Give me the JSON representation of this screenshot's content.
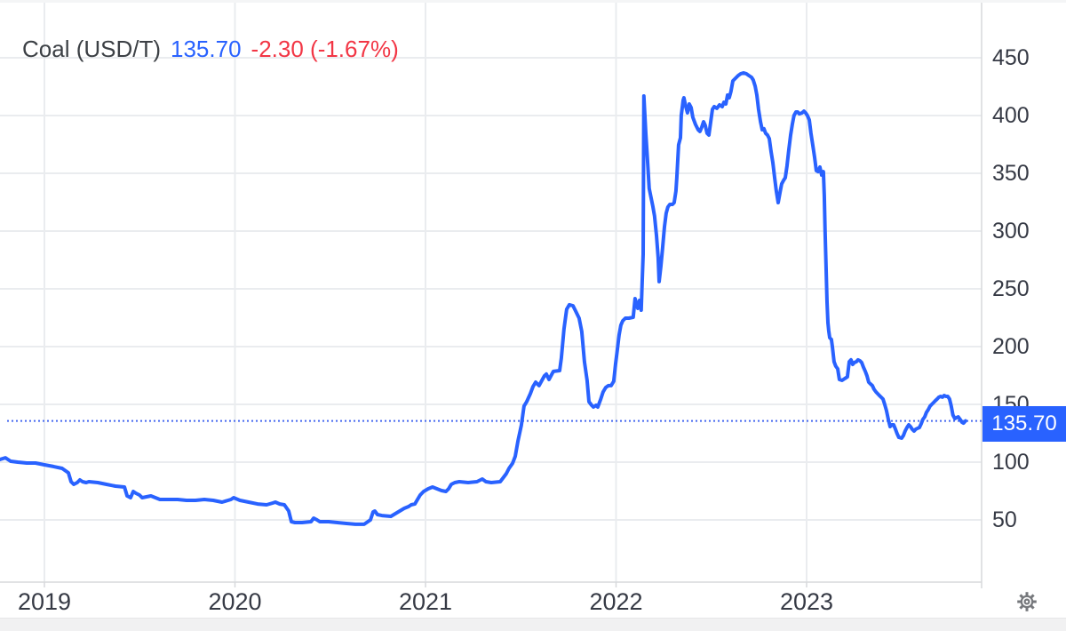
{
  "legend": {
    "title": "Coal (USD/T)",
    "last": "135.70",
    "change_text": "-2.30 (-1.67%)"
  },
  "price_label": {
    "text": "135.70"
  },
  "colors": {
    "line": "#2962ff",
    "last_price_text": "#2962ff",
    "change_negative": "#f23645",
    "price_tag_bg": "#2962ff",
    "grid": "#eaecef",
    "axis_line": "#d7d9dc",
    "axis_text": "#363a45",
    "dotted_price_line": "#4568ef",
    "gear": "#76787c"
  },
  "icons": {
    "settings": "gear-icon"
  },
  "chart_data": {
    "type": "line",
    "title": "Coal (USD/T)",
    "unit": "USD/T",
    "last_price": 135.7,
    "change": -2.3,
    "change_pct": -1.67,
    "price_line": 135.7,
    "grid": true,
    "legend_position": "top-left",
    "y_axis_side": "right",
    "ylim": [
      -3.8,
      500
    ],
    "xlim": [
      2018.767,
      2023.918
    ],
    "y_ticks": [
      450,
      400,
      350,
      300,
      250,
      200,
      150,
      100,
      50
    ],
    "x_ticks": [
      {
        "year": 2019,
        "label": "2019"
      },
      {
        "year": 2020,
        "label": "2020"
      },
      {
        "year": 2021,
        "label": "2021"
      },
      {
        "year": 2022,
        "label": "2022"
      },
      {
        "year": 2023,
        "label": "2023"
      }
    ],
    "points": [
      [
        2018.767,
        102.3
      ],
      [
        2018.795,
        103.8
      ],
      [
        2018.823,
        100.8
      ],
      [
        2018.86,
        100
      ],
      [
        2018.907,
        99.2
      ],
      [
        2018.953,
        99.2
      ],
      [
        2019.0,
        97.7
      ],
      [
        2019.047,
        96.2
      ],
      [
        2019.093,
        94.6
      ],
      [
        2019.126,
        90.8
      ],
      [
        2019.14,
        83.1
      ],
      [
        2019.154,
        80.8
      ],
      [
        2019.172,
        82.3
      ],
      [
        2019.186,
        84.6
      ],
      [
        2019.2,
        83.1
      ],
      [
        2019.219,
        82.3
      ],
      [
        2019.233,
        83.1
      ],
      [
        2019.28,
        82.3
      ],
      [
        2019.326,
        80.8
      ],
      [
        2019.373,
        79.2
      ],
      [
        2019.42,
        78.5
      ],
      [
        2019.434,
        70.8
      ],
      [
        2019.452,
        69.2
      ],
      [
        2019.466,
        74.6
      ],
      [
        2019.48,
        73.1
      ],
      [
        2019.499,
        71.5
      ],
      [
        2019.513,
        69.2
      ],
      [
        2019.559,
        70.8
      ],
      [
        2019.606,
        67.7
      ],
      [
        2019.653,
        67.7
      ],
      [
        2019.699,
        67.7
      ],
      [
        2019.746,
        66.9
      ],
      [
        2019.793,
        66.9
      ],
      [
        2019.839,
        67.7
      ],
      [
        2019.886,
        66.9
      ],
      [
        2019.932,
        65.4
      ],
      [
        2019.979,
        67.7
      ],
      [
        2019.993,
        69.2
      ],
      [
        2020.026,
        66.9
      ],
      [
        2020.072,
        65.4
      ],
      [
        2020.119,
        63.8
      ],
      [
        2020.166,
        63.1
      ],
      [
        2020.198,
        64.6
      ],
      [
        2020.212,
        65.4
      ],
      [
        2020.235,
        63.8
      ],
      [
        2020.259,
        63.1
      ],
      [
        2020.282,
        57.7
      ],
      [
        2020.296,
        48.5
      ],
      [
        2020.315,
        47.7
      ],
      [
        2020.352,
        47.7
      ],
      [
        2020.399,
        48.5
      ],
      [
        2020.413,
        51.5
      ],
      [
        2020.431,
        50
      ],
      [
        2020.445,
        48.5
      ],
      [
        2020.492,
        48.5
      ],
      [
        2020.538,
        47.7
      ],
      [
        2020.585,
        46.9
      ],
      [
        2020.632,
        46.2
      ],
      [
        2020.678,
        46.2
      ],
      [
        2020.711,
        50
      ],
      [
        2020.725,
        56.9
      ],
      [
        2020.734,
        57.7
      ],
      [
        2020.748,
        54.6
      ],
      [
        2020.771,
        53.8
      ],
      [
        2020.818,
        53.1
      ],
      [
        2020.865,
        57.7
      ],
      [
        2020.888,
        60
      ],
      [
        2020.911,
        61.5
      ],
      [
        2020.925,
        63.1
      ],
      [
        2020.944,
        63.8
      ],
      [
        2020.958,
        67.7
      ],
      [
        2020.972,
        71.5
      ],
      [
        2020.99,
        74.6
      ],
      [
        2021.014,
        76.9
      ],
      [
        2021.037,
        78.5
      ],
      [
        2021.06,
        76.9
      ],
      [
        2021.084,
        75.4
      ],
      [
        2021.107,
        74.6
      ],
      [
        2021.121,
        76.9
      ],
      [
        2021.135,
        80.8
      ],
      [
        2021.154,
        82.3
      ],
      [
        2021.177,
        83.1
      ],
      [
        2021.224,
        82.3
      ],
      [
        2021.27,
        83.1
      ],
      [
        2021.298,
        85.4
      ],
      [
        2021.317,
        83.1
      ],
      [
        2021.345,
        82.3
      ],
      [
        2021.392,
        83.1
      ],
      [
        2021.41,
        86.9
      ],
      [
        2021.424,
        90
      ],
      [
        2021.438,
        94.6
      ],
      [
        2021.457,
        99
      ],
      [
        2021.471,
        105
      ],
      [
        2021.485,
        118
      ],
      [
        2021.503,
        132
      ],
      [
        2021.517,
        148.5
      ],
      [
        2021.531,
        152.3
      ],
      [
        2021.55,
        159.2
      ],
      [
        2021.564,
        165.4
      ],
      [
        2021.578,
        169.2
      ],
      [
        2021.596,
        166.2
      ],
      [
        2021.624,
        174.6
      ],
      [
        2021.634,
        176.2
      ],
      [
        2021.648,
        171.5
      ],
      [
        2021.671,
        178.5
      ],
      [
        2021.704,
        179.2
      ],
      [
        2021.713,
        190
      ],
      [
        2021.727,
        215.4
      ],
      [
        2021.741,
        232.3
      ],
      [
        2021.755,
        236.2
      ],
      [
        2021.774,
        235.4
      ],
      [
        2021.788,
        230.8
      ],
      [
        2021.806,
        224.6
      ],
      [
        2021.82,
        213.1
      ],
      [
        2021.834,
        186.9
      ],
      [
        2021.848,
        170.8
      ],
      [
        2021.858,
        152.3
      ],
      [
        2021.872,
        149.2
      ],
      [
        2021.881,
        147.7
      ],
      [
        2021.895,
        149.2
      ],
      [
        2021.904,
        147.7
      ],
      [
        2021.918,
        153.8
      ],
      [
        2021.932,
        160.8
      ],
      [
        2021.946,
        164.6
      ],
      [
        2021.96,
        166.2
      ],
      [
        2021.974,
        166.2
      ],
      [
        2021.988,
        170
      ],
      [
        2021.997,
        184.6
      ],
      [
        2022.007,
        197.7
      ],
      [
        2022.016,
        210
      ],
      [
        2022.025,
        218.5
      ],
      [
        2022.035,
        222.3
      ],
      [
        2022.049,
        224.6
      ],
      [
        2022.067,
        224.6
      ],
      [
        2022.09,
        225.4
      ],
      [
        2022.1,
        241.5
      ],
      [
        2022.114,
        233.1
      ],
      [
        2022.123,
        240
      ],
      [
        2022.132,
        231.5
      ],
      [
        2022.142,
        280
      ],
      [
        2022.146,
        416.9
      ],
      [
        2022.156,
        384.6
      ],
      [
        2022.165,
        361.5
      ],
      [
        2022.174,
        336.9
      ],
      [
        2022.184,
        328.5
      ],
      [
        2022.193,
        321.5
      ],
      [
        2022.202,
        313.1
      ],
      [
        2022.212,
        296.2
      ],
      [
        2022.221,
        276.9
      ],
      [
        2022.226,
        256.2
      ],
      [
        2022.235,
        269.2
      ],
      [
        2022.244,
        284.6
      ],
      [
        2022.254,
        303.8
      ],
      [
        2022.263,
        315.4
      ],
      [
        2022.272,
        320.8
      ],
      [
        2022.282,
        323.1
      ],
      [
        2022.296,
        323.1
      ],
      [
        2022.305,
        324.6
      ],
      [
        2022.314,
        334.6
      ],
      [
        2022.319,
        346.2
      ],
      [
        2022.328,
        374.6
      ],
      [
        2022.338,
        380.8
      ],
      [
        2022.342,
        400
      ],
      [
        2022.352,
        413.1
      ],
      [
        2022.356,
        415.4
      ],
      [
        2022.366,
        407.7
      ],
      [
        2022.375,
        402.3
      ],
      [
        2022.384,
        410
      ],
      [
        2022.394,
        406.9
      ],
      [
        2022.403,
        398.5
      ],
      [
        2022.417,
        392.3
      ],
      [
        2022.431,
        387.7
      ],
      [
        2022.44,
        386.2
      ],
      [
        2022.45,
        390
      ],
      [
        2022.459,
        394.6
      ],
      [
        2022.468,
        391.5
      ],
      [
        2022.478,
        384.6
      ],
      [
        2022.487,
        383.1
      ],
      [
        2022.496,
        393.8
      ],
      [
        2022.506,
        405.4
      ],
      [
        2022.515,
        407.7
      ],
      [
        2022.529,
        406.2
      ],
      [
        2022.543,
        409.2
      ],
      [
        2022.557,
        407.7
      ],
      [
        2022.566,
        411.5
      ],
      [
        2022.576,
        410
      ],
      [
        2022.585,
        417.7
      ],
      [
        2022.594,
        415.4
      ],
      [
        2022.603,
        420.8
      ],
      [
        2022.613,
        430
      ],
      [
        2022.627,
        432.3
      ],
      [
        2022.641,
        434.6
      ],
      [
        2022.655,
        436.2
      ],
      [
        2022.669,
        436.9
      ],
      [
        2022.683,
        436.2
      ],
      [
        2022.697,
        434.6
      ],
      [
        2022.711,
        433.1
      ],
      [
        2022.72,
        430.8
      ],
      [
        2022.73,
        425.4
      ],
      [
        2022.739,
        417.7
      ],
      [
        2022.748,
        405.4
      ],
      [
        2022.758,
        394.6
      ],
      [
        2022.767,
        387.7
      ],
      [
        2022.776,
        388.5
      ],
      [
        2022.785,
        384.6
      ],
      [
        2022.795,
        383.1
      ],
      [
        2022.804,
        380
      ],
      [
        2022.813,
        369.2
      ],
      [
        2022.823,
        359.2
      ],
      [
        2022.832,
        346.2
      ],
      [
        2022.841,
        334.6
      ],
      [
        2022.851,
        324.6
      ],
      [
        2022.86,
        333.1
      ],
      [
        2022.869,
        340.8
      ],
      [
        2022.879,
        343.8
      ],
      [
        2022.888,
        346.2
      ],
      [
        2022.897,
        356.2
      ],
      [
        2022.906,
        369.2
      ],
      [
        2022.916,
        383.1
      ],
      [
        2022.925,
        392.3
      ],
      [
        2022.934,
        400
      ],
      [
        2022.944,
        403.1
      ],
      [
        2022.953,
        403.1
      ],
      [
        2022.962,
        401.5
      ],
      [
        2022.976,
        402.3
      ],
      [
        2022.986,
        403.8
      ],
      [
        2022.995,
        402.3
      ],
      [
        2023.004,
        400
      ],
      [
        2023.014,
        396.2
      ],
      [
        2023.023,
        384.6
      ],
      [
        2023.032,
        374.6
      ],
      [
        2023.042,
        363.8
      ],
      [
        2023.051,
        352.3
      ],
      [
        2023.06,
        351.5
      ],
      [
        2023.07,
        355.4
      ],
      [
        2023.079,
        348.5
      ],
      [
        2023.088,
        351.5
      ],
      [
        2023.093,
        330.8
      ],
      [
        2023.097,
        300
      ],
      [
        2023.102,
        269.2
      ],
      [
        2023.107,
        238.5
      ],
      [
        2023.112,
        220.8
      ],
      [
        2023.116,
        213.8
      ],
      [
        2023.121,
        207.7
      ],
      [
        2023.13,
        206.2
      ],
      [
        2023.135,
        200
      ],
      [
        2023.144,
        186.9
      ],
      [
        2023.153,
        183.1
      ],
      [
        2023.163,
        180.8
      ],
      [
        2023.172,
        171.5
      ],
      [
        2023.186,
        170.8
      ],
      [
        2023.2,
        172.3
      ],
      [
        2023.214,
        173.8
      ],
      [
        2023.224,
        186.9
      ],
      [
        2023.233,
        188.5
      ],
      [
        2023.242,
        184.6
      ],
      [
        2023.251,
        186.2
      ],
      [
        2023.261,
        186.9
      ],
      [
        2023.27,
        188.5
      ],
      [
        2023.28,
        187.7
      ],
      [
        2023.289,
        186.2
      ],
      [
        2023.298,
        182.3
      ],
      [
        2023.308,
        178.5
      ],
      [
        2023.317,
        174.6
      ],
      [
        2023.326,
        169.2
      ],
      [
        2023.335,
        167.7
      ],
      [
        2023.345,
        166.2
      ],
      [
        2023.354,
        163.1
      ],
      [
        2023.364,
        160.8
      ],
      [
        2023.373,
        159.2
      ],
      [
        2023.382,
        157.7
      ],
      [
        2023.391,
        156.2
      ],
      [
        2023.401,
        154.6
      ],
      [
        2023.41,
        150
      ],
      [
        2023.419,
        144.6
      ],
      [
        2023.429,
        136.9
      ],
      [
        2023.438,
        130.8
      ],
      [
        2023.447,
        132.3
      ],
      [
        2023.457,
        132.3
      ],
      [
        2023.466,
        128.5
      ],
      [
        2023.475,
        124.6
      ],
      [
        2023.484,
        121.5
      ],
      [
        2023.499,
        120.8
      ],
      [
        2023.508,
        123.1
      ],
      [
        2023.517,
        126.9
      ],
      [
        2023.527,
        130
      ],
      [
        2023.536,
        132.3
      ],
      [
        2023.545,
        130.8
      ],
      [
        2023.554,
        128.5
      ],
      [
        2023.564,
        126.9
      ],
      [
        2023.573,
        128.5
      ],
      [
        2023.582,
        129.2
      ],
      [
        2023.592,
        130
      ],
      [
        2023.601,
        133.1
      ],
      [
        2023.61,
        136.9
      ],
      [
        2023.62,
        139.2
      ],
      [
        2023.629,
        143.1
      ],
      [
        2023.638,
        145.4
      ],
      [
        2023.648,
        148.5
      ],
      [
        2023.657,
        150
      ],
      [
        2023.666,
        151.5
      ],
      [
        2023.675,
        153.1
      ],
      [
        2023.685,
        154.6
      ],
      [
        2023.694,
        156.2
      ],
      [
        2023.703,
        156.9
      ],
      [
        2023.713,
        156.2
      ],
      [
        2023.722,
        157.7
      ],
      [
        2023.731,
        156.9
      ],
      [
        2023.741,
        156.9
      ],
      [
        2023.75,
        154.6
      ],
      [
        2023.759,
        148.5
      ],
      [
        2023.768,
        140.8
      ],
      [
        2023.778,
        137.7
      ],
      [
        2023.787,
        138.5
      ],
      [
        2023.796,
        139.2
      ],
      [
        2023.806,
        136.9
      ],
      [
        2023.815,
        134.6
      ],
      [
        2023.824,
        133.8
      ],
      [
        2023.834,
        135.7
      ]
    ]
  }
}
